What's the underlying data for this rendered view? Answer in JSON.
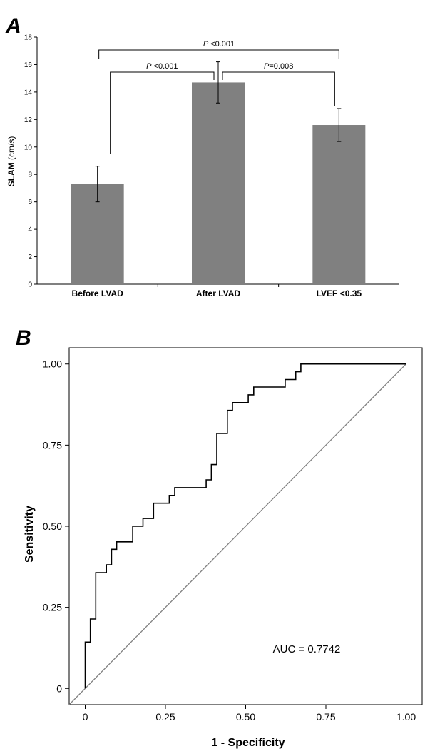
{
  "chart_data": [
    {
      "panel": "A",
      "type": "bar",
      "ylabel_bold": "SLAM",
      "ylabel_unit": " (cm/s)",
      "ylim": [
        0,
        18
      ],
      "yticks": [
        "0",
        "2",
        "4",
        "6",
        "8",
        "10",
        "12",
        "14",
        "16",
        "18"
      ],
      "categories": [
        "Before LVAD",
        "After LVAD",
        "LVEF <0.35"
      ],
      "values": [
        7.3,
        14.7,
        11.6
      ],
      "error_low": [
        6.0,
        13.2,
        10.4
      ],
      "error_high": [
        8.6,
        16.2,
        12.8
      ],
      "bar_color": "#808080",
      "comparisons": [
        {
          "from": 0,
          "to": 1,
          "label_italic": "P",
          "label_rest": " <0.001",
          "level": 1
        },
        {
          "from": 1,
          "to": 2,
          "label_italic": "P",
          "label_rest": "=0.008",
          "level": 1
        },
        {
          "from": 0,
          "to": 2,
          "label_italic": "P",
          "label_rest": " <0.001",
          "level": 2
        }
      ]
    },
    {
      "panel": "B",
      "type": "line",
      "xlabel": "1 - Specificity",
      "ylabel": "Sensitivity",
      "xlim": [
        -0.05,
        1.05
      ],
      "ylim": [
        -0.05,
        1.05
      ],
      "xticks": [
        "0",
        "0.25",
        "0.50",
        "0.75",
        "1.00"
      ],
      "yticks": [
        "0",
        "0.25",
        "0.50",
        "0.75",
        "1.00"
      ],
      "annotation": "AUC = 0.7742",
      "reference_line_color": "#808080",
      "roc": [
        [
          0.0,
          0.0
        ],
        [
          0.0,
          0.143
        ],
        [
          0.016,
          0.143
        ],
        [
          0.016,
          0.214
        ],
        [
          0.033,
          0.214
        ],
        [
          0.033,
          0.357
        ],
        [
          0.066,
          0.357
        ],
        [
          0.066,
          0.381
        ],
        [
          0.082,
          0.381
        ],
        [
          0.082,
          0.429
        ],
        [
          0.098,
          0.429
        ],
        [
          0.098,
          0.452
        ],
        [
          0.148,
          0.452
        ],
        [
          0.148,
          0.5
        ],
        [
          0.18,
          0.5
        ],
        [
          0.18,
          0.524
        ],
        [
          0.213,
          0.524
        ],
        [
          0.213,
          0.571
        ],
        [
          0.262,
          0.571
        ],
        [
          0.262,
          0.595
        ],
        [
          0.279,
          0.595
        ],
        [
          0.279,
          0.619
        ],
        [
          0.377,
          0.619
        ],
        [
          0.377,
          0.643
        ],
        [
          0.393,
          0.643
        ],
        [
          0.393,
          0.69
        ],
        [
          0.41,
          0.69
        ],
        [
          0.41,
          0.786
        ],
        [
          0.443,
          0.786
        ],
        [
          0.443,
          0.857
        ],
        [
          0.459,
          0.857
        ],
        [
          0.459,
          0.881
        ],
        [
          0.508,
          0.881
        ],
        [
          0.508,
          0.905
        ],
        [
          0.525,
          0.905
        ],
        [
          0.525,
          0.929
        ],
        [
          0.623,
          0.929
        ],
        [
          0.623,
          0.952
        ],
        [
          0.656,
          0.952
        ],
        [
          0.656,
          0.976
        ],
        [
          0.672,
          0.976
        ],
        [
          0.672,
          1.0
        ],
        [
          1.0,
          1.0
        ]
      ]
    }
  ]
}
